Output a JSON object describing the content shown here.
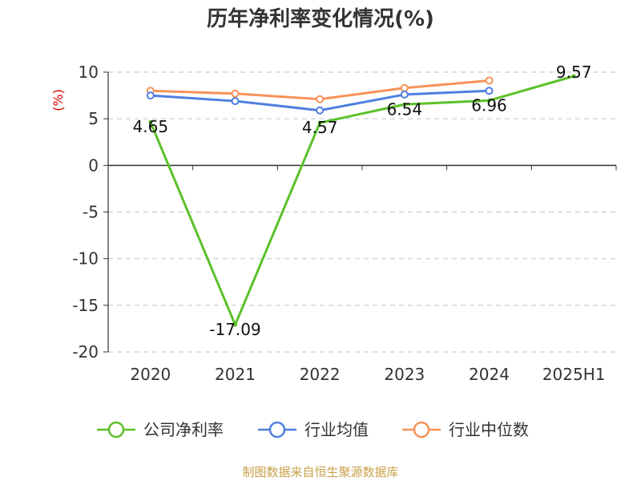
{
  "chart_data": {
    "type": "line",
    "title": "历年净利率变化情况(%)",
    "ylabel": "(%)",
    "ylim": [
      -20,
      10
    ],
    "yticks": [
      10,
      5,
      0,
      -5,
      -10,
      -15,
      -20
    ],
    "categories": [
      "2020",
      "2021",
      "2022",
      "2023",
      "2024",
      "2025H1"
    ],
    "grid": true,
    "legend_position": "bottom",
    "series": [
      {
        "name": "公司净利率",
        "color": "#5cc12a",
        "values": [
          4.65,
          -17.09,
          4.57,
          6.54,
          6.96,
          9.57
        ],
        "labels": [
          "4.65",
          "-17.09",
          "4.57",
          "6.54",
          "6.96",
          "9.57"
        ]
      },
      {
        "name": "行业均值",
        "color": "#4f7fe0",
        "values": [
          7.5,
          6.9,
          5.9,
          7.6,
          8.0,
          null
        ]
      },
      {
        "name": "行业中位数",
        "color": "#f7925a",
        "values": [
          8.0,
          7.7,
          7.1,
          8.3,
          9.1,
          null
        ]
      }
    ],
    "source": "制图数据来自恒生聚源数据库",
    "colors": {
      "ylabel": "#e00000",
      "source": "#c8a04a",
      "grid": "#cccccc",
      "axis": "#333333"
    }
  }
}
